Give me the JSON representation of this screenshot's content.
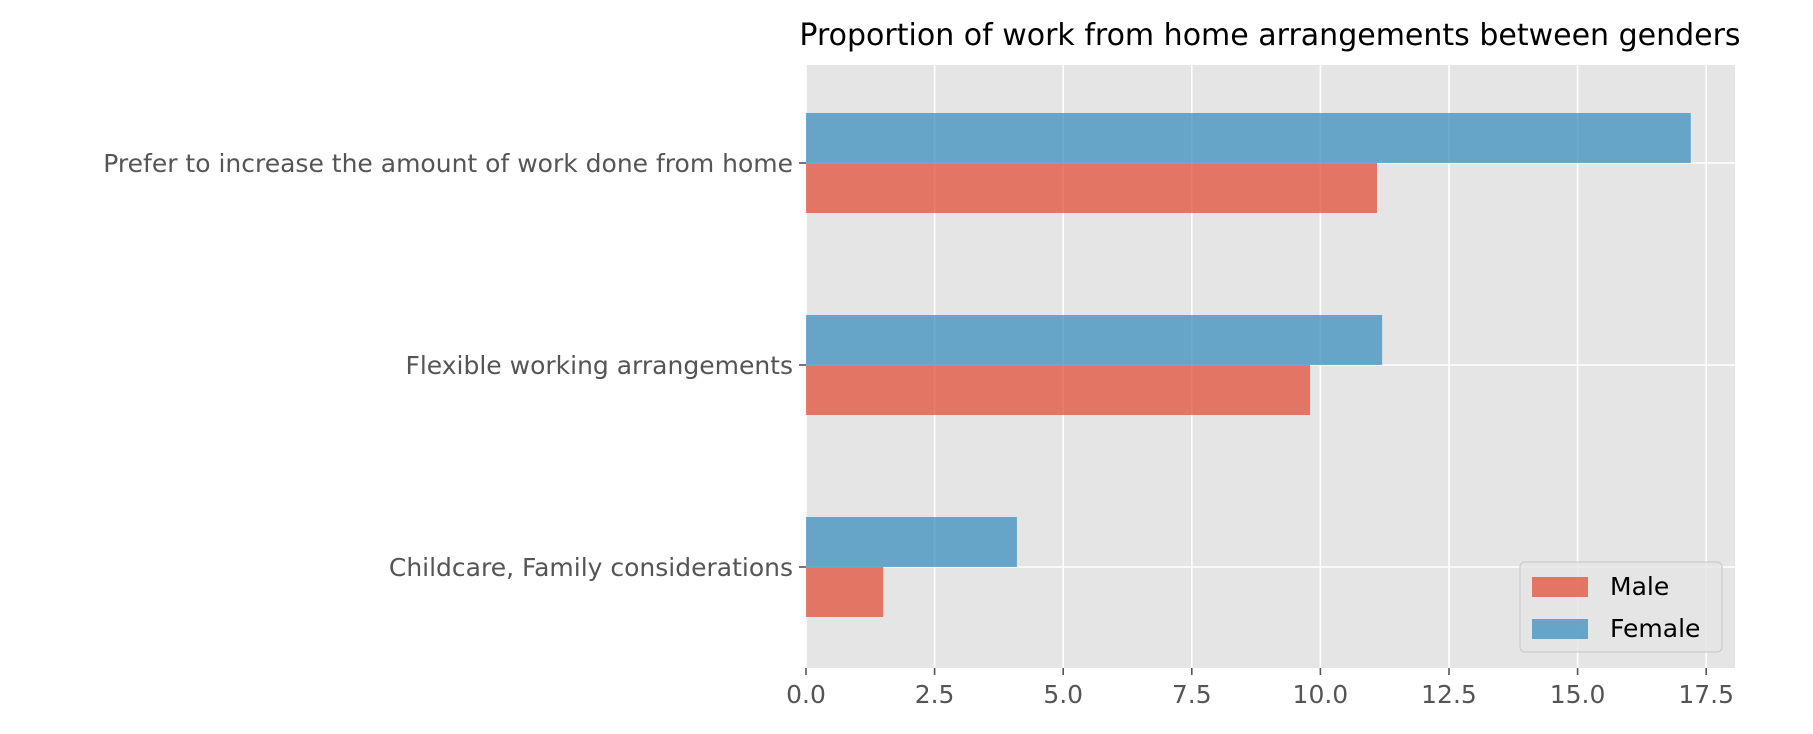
{
  "chart_data": {
    "type": "bar",
    "orientation": "horizontal",
    "title": "Proportion of work from home arrangements between genders",
    "xlabel": "",
    "ylabel": "",
    "categories": [
      "Childcare, Family considerations",
      "Flexible working arrangements",
      "Prefer to increase the amount of work done from home"
    ],
    "series": [
      {
        "name": "Male",
        "values": [
          1.5,
          9.8,
          11.1
        ],
        "color": "#E24A33"
      },
      {
        "name": "Female",
        "values": [
          4.1,
          11.2,
          17.2
        ],
        "color": "#348ABD"
      }
    ],
    "xlim": [
      0,
      18.06
    ],
    "xticks": [
      0.0,
      2.5,
      5.0,
      7.5,
      10.0,
      12.5,
      15.0,
      17.5
    ],
    "xtick_labels": [
      "0.0",
      "2.5",
      "5.0",
      "7.5",
      "10.0",
      "12.5",
      "15.0",
      "17.5"
    ],
    "grid": true,
    "legend_position": "lower-right",
    "style": {
      "background": "#E5E5E5",
      "grid_color": "#FFFFFF"
    }
  }
}
